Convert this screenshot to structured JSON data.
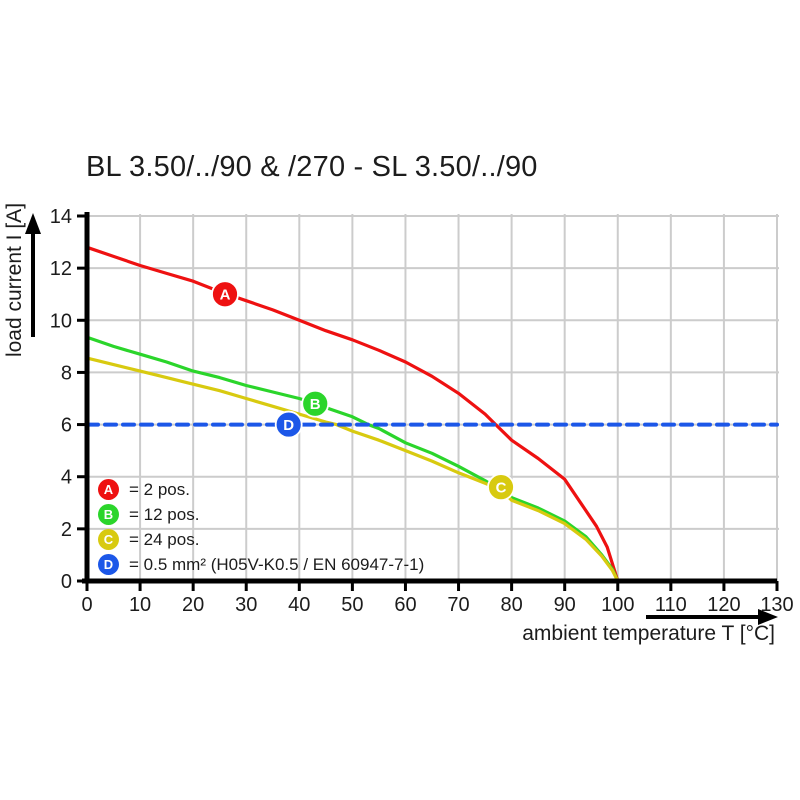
{
  "chart_data": {
    "type": "line",
    "title": "BL 3.50/../90 & /270 - SL 3.50/../90",
    "xlabel": "ambient temperature T [°C]",
    "ylabel": "load current I [A]",
    "xlim": [
      0,
      130
    ],
    "ylim": [
      0,
      14
    ],
    "xticks": [
      0,
      10,
      20,
      30,
      40,
      50,
      60,
      70,
      80,
      90,
      100,
      110,
      120,
      130
    ],
    "yticks": [
      0,
      2,
      4,
      6,
      8,
      10,
      12,
      14
    ],
    "grid": true,
    "grid_color": "#cccccc",
    "axis_color": "#000000",
    "legend_position": "inside bottom-left",
    "series": [
      {
        "name": "A",
        "label": "= 2 pos.",
        "color": "#ee1111",
        "style": "solid",
        "points": [
          [
            0,
            12.8
          ],
          [
            5,
            12.45
          ],
          [
            10,
            12.1
          ],
          [
            15,
            11.8
          ],
          [
            20,
            11.5
          ],
          [
            25,
            11.1
          ],
          [
            30,
            10.75
          ],
          [
            35,
            10.4
          ],
          [
            40,
            10.0
          ],
          [
            45,
            9.6
          ],
          [
            50,
            9.25
          ],
          [
            55,
            8.85
          ],
          [
            60,
            8.4
          ],
          [
            65,
            7.85
          ],
          [
            70,
            7.2
          ],
          [
            75,
            6.4
          ],
          [
            77,
            6.0
          ],
          [
            80,
            5.4
          ],
          [
            85,
            4.7
          ],
          [
            90,
            3.9
          ],
          [
            93,
            3.0
          ],
          [
            96,
            2.1
          ],
          [
            98,
            1.3
          ],
          [
            100,
            0
          ]
        ]
      },
      {
        "name": "B",
        "label": "= 12 pos.",
        "color": "#2bd52b",
        "style": "solid",
        "points": [
          [
            0,
            9.35
          ],
          [
            5,
            9.0
          ],
          [
            10,
            8.7
          ],
          [
            15,
            8.4
          ],
          [
            20,
            8.05
          ],
          [
            25,
            7.8
          ],
          [
            30,
            7.5
          ],
          [
            35,
            7.25
          ],
          [
            40,
            7.0
          ],
          [
            43,
            6.8
          ],
          [
            45,
            6.65
          ],
          [
            50,
            6.3
          ],
          [
            53,
            6.0
          ],
          [
            55,
            5.85
          ],
          [
            60,
            5.3
          ],
          [
            65,
            4.9
          ],
          [
            70,
            4.4
          ],
          [
            75,
            3.85
          ],
          [
            80,
            3.2
          ],
          [
            85,
            2.8
          ],
          [
            90,
            2.3
          ],
          [
            94,
            1.7
          ],
          [
            97,
            1.0
          ],
          [
            99,
            0.45
          ],
          [
            100,
            0
          ]
        ]
      },
      {
        "name": "C",
        "label": "= 24 pos.",
        "color": "#d8ca10",
        "style": "solid",
        "points": [
          [
            0,
            8.55
          ],
          [
            5,
            8.3
          ],
          [
            10,
            8.05
          ],
          [
            15,
            7.8
          ],
          [
            20,
            7.55
          ],
          [
            25,
            7.3
          ],
          [
            30,
            7.0
          ],
          [
            35,
            6.7
          ],
          [
            40,
            6.4
          ],
          [
            45,
            6.1
          ],
          [
            47,
            6.0
          ],
          [
            50,
            5.75
          ],
          [
            55,
            5.4
          ],
          [
            60,
            5.0
          ],
          [
            65,
            4.6
          ],
          [
            70,
            4.15
          ],
          [
            75,
            3.75
          ],
          [
            78,
            3.5
          ],
          [
            80,
            3.1
          ],
          [
            85,
            2.7
          ],
          [
            90,
            2.2
          ],
          [
            94,
            1.6
          ],
          [
            97,
            0.95
          ],
          [
            99,
            0.4
          ],
          [
            100,
            0
          ]
        ]
      },
      {
        "name": "D",
        "label": "= 0.5 mm² (H05V-K0.5 / EN 60947-7-1)",
        "color": "#1c57e8",
        "style": "dashed",
        "points": [
          [
            0,
            6
          ],
          [
            130,
            6
          ]
        ]
      }
    ],
    "markers": [
      {
        "label": "A",
        "x": 26,
        "y": 11.0,
        "color": "#ee1111"
      },
      {
        "label": "B",
        "x": 43,
        "y": 6.8,
        "color": "#2bd52b"
      },
      {
        "label": "C",
        "x": 78,
        "y": 3.6,
        "color": "#d8ca10"
      },
      {
        "label": "D",
        "x": 38,
        "y": 6.0,
        "color": "#1c57e8"
      }
    ]
  }
}
